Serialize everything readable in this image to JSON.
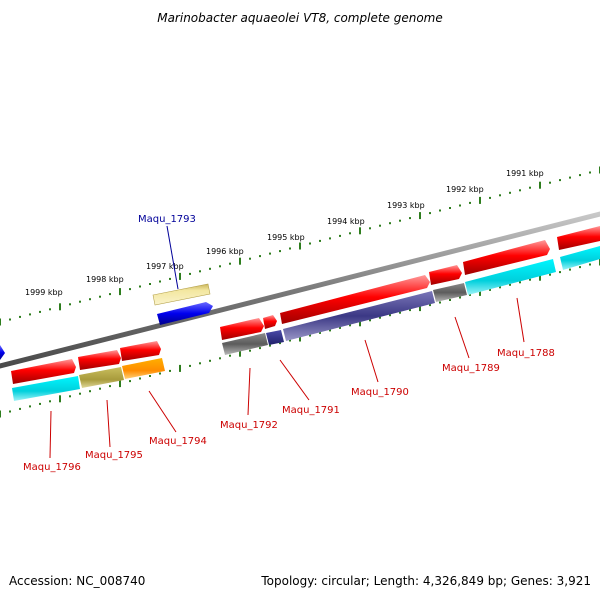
{
  "title": "Marinobacter aquaeolei VT8, complete genome",
  "footer": {
    "accession": "Accession: NC_008740",
    "topology": "Topology: circular; Length: 4,326,849 bp; Genes: 3,921"
  },
  "colors": {
    "backbone": "#8a8a8a",
    "tick": "#2e7d1e",
    "cds_forward": "#ff0000",
    "cds_reverse_generic": "#00e5ee",
    "label_red": "#cc0000",
    "label_blue": "#000099",
    "feature_blue": "#0000ee"
  },
  "ruler_labels": [
    "1991 kbp",
    "1992 kbp",
    "1993 kbp",
    "1994 kbp",
    "1995 kbp",
    "1996 kbp",
    "1997 kbp",
    "1998 kbp",
    "1999 kbp"
  ],
  "gene_labels": [
    {
      "name": "Maqu_1788",
      "color": "#cc0000"
    },
    {
      "name": "Maqu_1789",
      "color": "#cc0000"
    },
    {
      "name": "Maqu_1790",
      "color": "#cc0000"
    },
    {
      "name": "Maqu_1791",
      "color": "#cc0000"
    },
    {
      "name": "Maqu_1792",
      "color": "#cc0000"
    },
    {
      "name": "Maqu_1793",
      "color": "#000099"
    },
    {
      "name": "Maqu_1794",
      "color": "#cc0000"
    },
    {
      "name": "Maqu_1795",
      "color": "#cc0000"
    },
    {
      "name": "Maqu_1796",
      "color": "#cc0000"
    }
  ]
}
